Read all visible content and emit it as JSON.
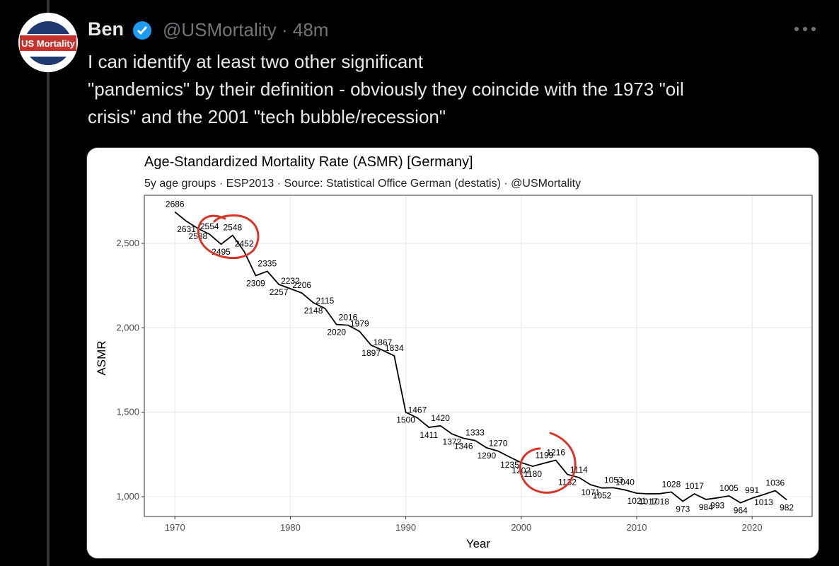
{
  "tweet": {
    "avatar_label": "US Mortality",
    "name": "Ben",
    "meta": "@USMortality · 48m",
    "text_lines": [
      "I can identify at least two other significant",
      "\"pandemics\" by their definition - obviously they coincide with the 1973 \"oil",
      "crisis\" and the 2001 \"tech bubble/recession\""
    ]
  },
  "chart_data": {
    "type": "line",
    "title": "Age-Standardized Mortality Rate (ASMR) [Germany]",
    "subtitle": "5y age groups · ESP2013 · Source: Statistical Office German (destatis) · @USMortality",
    "x_label": "Year",
    "y_label": "ASMR",
    "color": "#000000",
    "grid": true,
    "x": [
      1970,
      1971,
      1972,
      1973,
      1974,
      1975,
      1976,
      1977,
      1978,
      1979,
      1980,
      1981,
      1982,
      1983,
      1984,
      1985,
      1986,
      1987,
      1988,
      1989,
      1990,
      1991,
      1992,
      1993,
      1994,
      1995,
      1996,
      1997,
      1998,
      1999,
      2000,
      2001,
      2002,
      2003,
      2004,
      2005,
      2006,
      2007,
      2008,
      2009,
      2010,
      2011,
      2012,
      2013,
      2014,
      2015,
      2016,
      2017,
      2018,
      2019,
      2020,
      2021,
      2022,
      2023
    ],
    "values": [
      2686,
      2631,
      2588,
      2554,
      2495,
      2548,
      2452,
      2309,
      2335,
      2257,
      2232,
      2206,
      2148,
      2115,
      2020,
      2016,
      1979,
      1897,
      1867,
      1834,
      1500,
      1467,
      1411,
      1420,
      1372,
      1346,
      1333,
      1290,
      1270,
      1235,
      1202,
      1180,
      1199,
      1216,
      1132,
      1114,
      1071,
      1052,
      1053,
      1040,
      1021,
      1017,
      1018,
      1028,
      973,
      1017,
      984,
      993,
      1005,
      964,
      991,
      1013,
      1036,
      982
    ],
    "xlim": [
      1967.35,
      2025.2
    ],
    "ylim": [
      883,
      2785
    ],
    "xticks": [
      1970,
      1980,
      1990,
      2000,
      2010,
      2020
    ],
    "yticks": [
      {
        "value": 1000,
        "label": "1,000"
      },
      {
        "value": 1500,
        "label": "1,500"
      },
      {
        "value": 2000,
        "label": "2,000"
      },
      {
        "value": 2500,
        "label": "2,500"
      }
    ]
  }
}
